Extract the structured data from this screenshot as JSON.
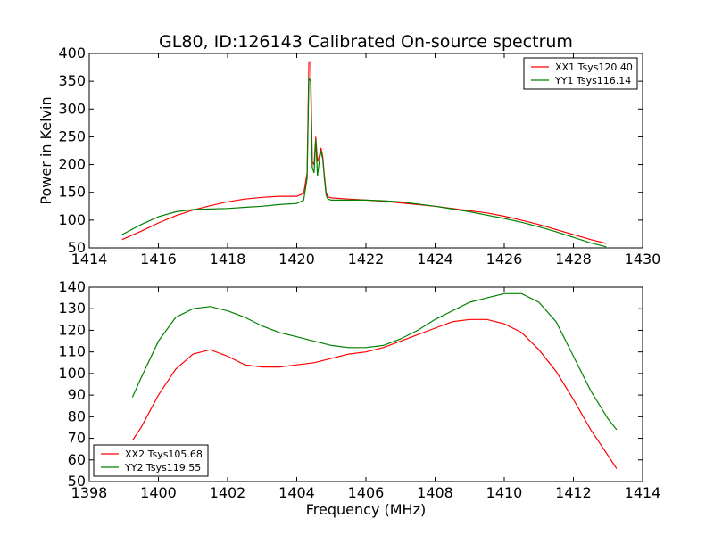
{
  "chart_data": [
    {
      "type": "line",
      "title": "GL80, ID:126143 Calibrated On-source spectrum",
      "xlabel": "",
      "ylabel": "Power in Kelvin",
      "xlim": [
        1414,
        1430
      ],
      "ylim": [
        50,
        400
      ],
      "xticks": [
        "1414",
        "1416",
        "1418",
        "1420",
        "1422",
        "1424",
        "1426",
        "1428",
        "1430"
      ],
      "yticks": [
        "50",
        "100",
        "150",
        "200",
        "250",
        "300",
        "350",
        "400"
      ],
      "grid": false,
      "legend_position": "upper right",
      "series": [
        {
          "name": "XX1 Tsys120.40",
          "color": "#ff0000",
          "x": [
            1414.95,
            1415.5,
            1416,
            1416.5,
            1417,
            1417.5,
            1418,
            1418.5,
            1419,
            1419.5,
            1420,
            1420.2,
            1420.3,
            1420.35,
            1420.4,
            1420.45,
            1420.5,
            1420.55,
            1420.6,
            1420.65,
            1420.7,
            1420.75,
            1420.8,
            1420.85,
            1420.9,
            1421,
            1421.5,
            1422,
            1422.5,
            1423,
            1423.5,
            1424,
            1424.5,
            1425,
            1425.5,
            1426,
            1426.5,
            1427,
            1427.5,
            1428,
            1428.5,
            1428.95
          ],
          "values": [
            65,
            80,
            95,
            108,
            118,
            126,
            133,
            138,
            141,
            143,
            143,
            148,
            185,
            385,
            385,
            205,
            200,
            250,
            205,
            215,
            230,
            215,
            180,
            150,
            142,
            140,
            138,
            136,
            134,
            131,
            128,
            125,
            121,
            117,
            113,
            107,
            100,
            92,
            83,
            74,
            65,
            58
          ]
        },
        {
          "name": "YY1 Tsys116.14",
          "color": "#008000",
          "x": [
            1414.95,
            1415.5,
            1416,
            1416.5,
            1417,
            1417.5,
            1418,
            1418.5,
            1419,
            1419.5,
            1420,
            1420.2,
            1420.3,
            1420.35,
            1420.4,
            1420.45,
            1420.5,
            1420.55,
            1420.6,
            1420.65,
            1420.7,
            1420.75,
            1420.8,
            1420.85,
            1420.9,
            1421,
            1421.5,
            1422,
            1422.5,
            1423,
            1423.5,
            1424,
            1424.5,
            1425,
            1425.5,
            1426,
            1426.5,
            1427,
            1427.5,
            1428,
            1428.5,
            1428.95
          ],
          "values": [
            74,
            92,
            106,
            115,
            119,
            120,
            121,
            123,
            125,
            128,
            130,
            136,
            175,
            355,
            350,
            195,
            185,
            245,
            180,
            205,
            225,
            210,
            175,
            145,
            138,
            136,
            136,
            136,
            135,
            133,
            129,
            125,
            120,
            115,
            109,
            103,
            96,
            88,
            79,
            69,
            59,
            52
          ]
        }
      ]
    },
    {
      "type": "line",
      "title": "",
      "xlabel": "Frequency (MHz)",
      "ylabel": "",
      "xlim": [
        1398,
        1414
      ],
      "ylim": [
        50,
        140
      ],
      "xticks": [
        "1398",
        "1400",
        "1402",
        "1404",
        "1406",
        "1408",
        "1410",
        "1412",
        "1414"
      ],
      "yticks": [
        "50",
        "60",
        "70",
        "80",
        "90",
        "100",
        "110",
        "120",
        "130",
        "140"
      ],
      "grid": false,
      "legend_position": "lower left",
      "series": [
        {
          "name": "XX2 Tsys105.68",
          "color": "#ff0000",
          "x": [
            1399.25,
            1399.5,
            1400,
            1400.5,
            1401,
            1401.5,
            1402,
            1402.5,
            1403,
            1403.5,
            1404,
            1404.5,
            1405,
            1405.5,
            1406,
            1406.5,
            1407,
            1407.5,
            1408,
            1408.5,
            1409,
            1409.5,
            1410,
            1410.5,
            1411,
            1411.5,
            1412,
            1412.5,
            1413,
            1413.25
          ],
          "values": [
            69,
            75,
            90,
            102,
            109,
            111,
            108,
            104,
            103,
            103,
            104,
            105,
            107,
            109,
            110,
            112,
            115,
            118,
            121,
            124,
            125,
            125,
            123,
            119,
            111,
            101,
            88,
            74,
            62,
            56
          ]
        },
        {
          "name": "YY2 Tsys119.55",
          "color": "#008000",
          "x": [
            1399.25,
            1399.5,
            1400,
            1400.5,
            1401,
            1401.5,
            1402,
            1402.5,
            1403,
            1403.5,
            1404,
            1404.5,
            1405,
            1405.5,
            1406,
            1406.5,
            1407,
            1407.5,
            1408,
            1408.5,
            1409,
            1409.5,
            1410,
            1410.5,
            1411,
            1411.5,
            1412,
            1412.5,
            1413,
            1413.25
          ],
          "values": [
            89,
            98,
            115,
            126,
            130,
            131,
            129,
            126,
            122,
            119,
            117,
            115,
            113,
            112,
            112,
            113,
            116,
            120,
            125,
            129,
            133,
            135,
            137,
            137,
            133,
            124,
            108,
            92,
            79,
            74
          ]
        }
      ]
    }
  ]
}
